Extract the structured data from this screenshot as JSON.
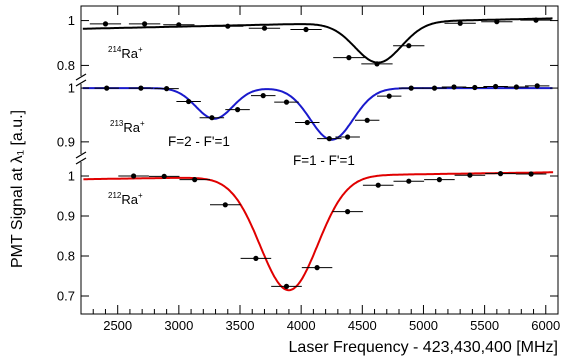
{
  "chart_data": {
    "type": "line",
    "xlabel": "Laser Frequency - 423,430,400 [MHz]",
    "ylabel": "PMT Signal at λ₁ [a.u.]",
    "xlim": [
      2200,
      6100
    ],
    "x_ticks": [
      "2500",
      "3000",
      "3500",
      "4000",
      "4500",
      "5000",
      "5500",
      "6000"
    ],
    "x_tick_values": [
      2500,
      3000,
      3500,
      4000,
      4500,
      5000,
      5500,
      6000
    ],
    "y_axis_breaks": 2,
    "grid": false,
    "colors": {
      "Ra214": "#000000",
      "Ra213": "#1a1acc",
      "Ra212": "#e00000",
      "points": "#000000"
    },
    "panels": [
      {
        "name": "214Ra+",
        "label_mass": "214",
        "label_elem": "Ra",
        "label_charge": "+",
        "ylim": [
          0.735,
          1.065
        ],
        "y_ticks": [
          "0.8",
          "1"
        ],
        "y_tick_values": [
          0.8,
          1.0
        ],
        "fit": {
          "baseline": 0.985,
          "dips": [
            {
              "center": 4630,
              "depth": 0.18,
              "width": 190
            }
          ],
          "slope": 1.2e-05
        },
        "points": [
          {
            "x": 2400,
            "y": 0.985
          },
          {
            "x": 2720,
            "y": 0.985
          },
          {
            "x": 3000,
            "y": 0.981
          },
          {
            "x": 3400,
            "y": 0.975
          },
          {
            "x": 3700,
            "y": 0.966
          },
          {
            "x": 4040,
            "y": 0.96
          },
          {
            "x": 4390,
            "y": 0.835
          },
          {
            "x": 4620,
            "y": 0.807
          },
          {
            "x": 4880,
            "y": 0.888
          },
          {
            "x": 5300,
            "y": 0.988
          },
          {
            "x": 5600,
            "y": 0.995
          },
          {
            "x": 5920,
            "y": 1.002
          }
        ]
      },
      {
        "name": "213Ra+",
        "label_mass": "213",
        "label_elem": "Ra",
        "label_charge": "+",
        "ylim": [
          0.87,
          1.015
        ],
        "y_ticks": [
          "0.9",
          "1"
        ],
        "y_tick_values": [
          0.9,
          1.0
        ],
        "fit": {
          "baseline": 1.0,
          "dips": [
            {
              "center": 3290,
              "depth": 0.057,
              "width": 150
            },
            {
              "center": 4250,
              "depth": 0.096,
              "width": 175
            }
          ]
        },
        "points": [
          {
            "x": 2410,
            "y": 1.0
          },
          {
            "x": 2690,
            "y": 1.0
          },
          {
            "x": 2900,
            "y": 0.999
          },
          {
            "x": 3080,
            "y": 0.975
          },
          {
            "x": 3270,
            "y": 0.945
          },
          {
            "x": 3480,
            "y": 0.96
          },
          {
            "x": 3690,
            "y": 0.986
          },
          {
            "x": 3880,
            "y": 0.974
          },
          {
            "x": 4050,
            "y": 0.936
          },
          {
            "x": 4230,
            "y": 0.906
          },
          {
            "x": 4380,
            "y": 0.909
          },
          {
            "x": 4540,
            "y": 0.94
          },
          {
            "x": 4720,
            "y": 0.985
          },
          {
            "x": 4900,
            "y": 1.0
          },
          {
            "x": 5090,
            "y": 1.0
          },
          {
            "x": 5250,
            "y": 1.002
          },
          {
            "x": 5420,
            "y": 1.001
          },
          {
            "x": 5590,
            "y": 1.003
          },
          {
            "x": 5760,
            "y": 1.002
          },
          {
            "x": 5930,
            "y": 1.004
          }
        ]
      },
      {
        "name": "212Ra+",
        "label_mass": "212",
        "label_elem": "Ra",
        "label_charge": "+",
        "ylim": [
          0.655,
          1.045
        ],
        "y_ticks": [
          "0.7",
          "0.8",
          "0.9",
          "1"
        ],
        "y_tick_values": [
          0.7,
          0.8,
          0.9,
          1.0
        ],
        "fit": {
          "baseline": 1.0,
          "dips": [
            {
              "center": 3900,
              "depth": 0.285,
              "width": 235
            }
          ],
          "slope": 4.5e-06
        },
        "points": [
          {
            "x": 2630,
            "y": 1.0
          },
          {
            "x": 2880,
            "y": 0.999
          },
          {
            "x": 3130,
            "y": 0.991
          },
          {
            "x": 3380,
            "y": 0.928
          },
          {
            "x": 3630,
            "y": 0.794
          },
          {
            "x": 3880,
            "y": 0.724
          },
          {
            "x": 4130,
            "y": 0.771
          },
          {
            "x": 4380,
            "y": 0.911
          },
          {
            "x": 4630,
            "y": 0.977
          },
          {
            "x": 4880,
            "y": 0.987
          },
          {
            "x": 5130,
            "y": 0.991
          },
          {
            "x": 5380,
            "y": 1.002
          },
          {
            "x": 5630,
            "y": 1.006
          },
          {
            "x": 5880,
            "y": 1.005
          }
        ]
      }
    ],
    "annotations": [
      {
        "text": "F=2 - F'=1",
        "x": 3290
      },
      {
        "text": "F=1 - F'=1",
        "x": 4260
      }
    ]
  }
}
